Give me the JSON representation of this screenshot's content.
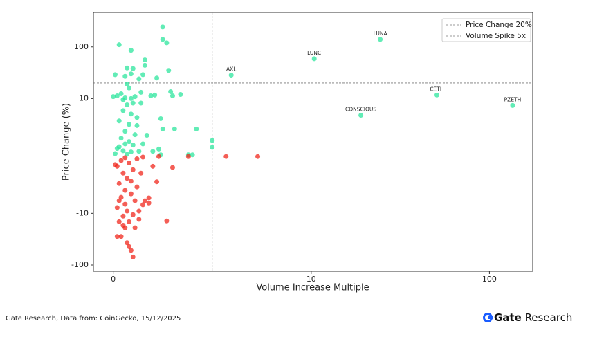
{
  "chart_data": {
    "type": "scatter",
    "xlabel": "Volume Increase Multiple",
    "ylabel": "Price Change (%)",
    "xscale": "symlog",
    "yscale": "symlog",
    "linthresh": 10,
    "xlim": [
      -1,
      175
    ],
    "ylim": [
      -132,
      464
    ],
    "xticks": [
      0,
      10,
      100
    ],
    "yticks": [
      -100,
      -10,
      10,
      100
    ],
    "up_color": "#2ee59d",
    "down_color": "#f0281e",
    "reference_lines": [
      {
        "axis": "y",
        "value": 20,
        "label": "Price Change 20%"
      },
      {
        "axis": "x",
        "value": 5,
        "label": "Volume Spike 5x"
      }
    ],
    "legend": "upper right",
    "x": [
      2.5,
      2.5,
      2.7,
      0.3,
      0.9,
      1.6,
      1.6,
      2.8,
      1.0,
      0.7,
      0.9,
      0.1,
      1.5,
      2.2,
      0.6,
      1.3,
      0.7,
      2.9,
      3.4,
      3.0,
      2.1,
      1.4,
      0.8,
      0.4,
      0.2,
      0.0,
      1.1,
      0.6,
      0.9,
      1.9,
      2.4,
      2.5,
      3.1,
      4.2,
      5.0,
      5.0,
      4.0,
      3.8,
      2.3,
      2.4,
      2.0,
      1.5,
      1.7,
      1.2,
      0.9,
      0.7,
      0.5,
      1.0,
      0.3,
      0.6,
      0.4,
      0.8,
      1.1,
      0.2,
      0.5,
      0.9,
      1.3,
      0.1,
      0.7,
      1.0,
      0.6,
      0.3,
      1.2,
      0.8,
      0.5,
      1.4,
      7.3,
      5.7,
      3.8,
      3.0,
      2.3,
      2.2,
      2.7,
      1.8,
      1.8,
      1.5,
      1.3,
      1.1,
      0.9,
      0.7,
      1.0,
      0.8,
      0.2,
      0.4,
      0.6,
      0.3,
      0.8,
      0.5,
      1.0,
      0.2,
      0.6,
      0.4,
      0.9,
      1.2,
      0.3,
      0.7,
      0.5,
      1.0,
      0.2,
      0.8,
      0.4,
      1.2,
      0.6,
      1.5,
      0.1,
      1.4,
      0.9,
      0.6,
      0.3,
      1.1,
      0.7,
      1.3,
      0.5,
      1.6,
      2.0,
      24.4,
      10.4,
      5.96,
      19,
      50.7,
      135
    ],
    "values": [
      244,
      140,
      120,
      110,
      86,
      56,
      44,
      35,
      38,
      39,
      30,
      29,
      29,
      25,
      27,
      24,
      19,
      13.6,
      12,
      11.3,
      11.7,
      13.2,
      16,
      12.4,
      11.3,
      10.9,
      10.9,
      10.3,
      10,
      11.3,
      6.5,
      4.7,
      4.7,
      4.7,
      2.7,
      1.5,
      0.2,
      0.2,
      1.2,
      0.2,
      0.8,
      2.1,
      3.6,
      5.3,
      7.3,
      8.9,
      7.9,
      9.2,
      6.1,
      4.3,
      3.1,
      2.5,
      3.7,
      1.3,
      0.9,
      0.7,
      0.8,
      0.4,
      0.3,
      1.9,
      2.1,
      1.6,
      6.7,
      5.5,
      9.8,
      9.2,
      -0.1,
      -0.1,
      -0.1,
      -2,
      -0.1,
      -4.5,
      -14,
      -7.3,
      -8.2,
      -8.5,
      -9.6,
      -19,
      -52,
      -37,
      -70,
      -44,
      -28,
      -28,
      -19,
      -14.5,
      -14.5,
      -11.3,
      -10.6,
      -9,
      -8.4,
      -7.2,
      -6.6,
      -5.4,
      -4.8,
      -3.9,
      -3,
      -2.4,
      -1.8,
      -1.2,
      -0.8,
      -0.5,
      -0.3,
      -0.2,
      -1.5,
      -3,
      -4.4,
      -6,
      -7.8,
      -7.8,
      -9.6,
      -13,
      -17,
      -7.8,
      -1.8,
      140,
      59,
      28.4,
      7.1,
      11.7,
      8.8
    ],
    "labels": [
      null,
      null,
      null,
      null,
      null,
      null,
      null,
      null,
      null,
      null,
      null,
      null,
      null,
      null,
      null,
      null,
      null,
      null,
      null,
      null,
      null,
      null,
      null,
      null,
      null,
      null,
      null,
      null,
      null,
      null,
      null,
      null,
      null,
      null,
      null,
      null,
      null,
      null,
      null,
      null,
      null,
      null,
      null,
      null,
      null,
      null,
      null,
      null,
      null,
      null,
      null,
      null,
      null,
      null,
      null,
      null,
      null,
      null,
      null,
      null,
      null,
      null,
      null,
      null,
      null,
      null,
      null,
      null,
      null,
      null,
      null,
      null,
      null,
      null,
      null,
      null,
      null,
      null,
      null,
      null,
      null,
      null,
      null,
      null,
      null,
      null,
      null,
      null,
      null,
      null,
      null,
      null,
      null,
      null,
      null,
      null,
      null,
      null,
      null,
      null,
      null,
      null,
      null,
      null,
      null,
      null,
      null,
      null,
      null,
      null,
      null,
      null,
      null,
      null,
      null,
      "LUNA",
      "LUNC",
      "AXL",
      "CONSCIOUS",
      "CETH",
      "PZETH"
    ]
  },
  "footer": {
    "source": "Gate Research, Data from: CoinGecko, 15/12/2025",
    "brand": [
      "Gate",
      "Research"
    ]
  }
}
